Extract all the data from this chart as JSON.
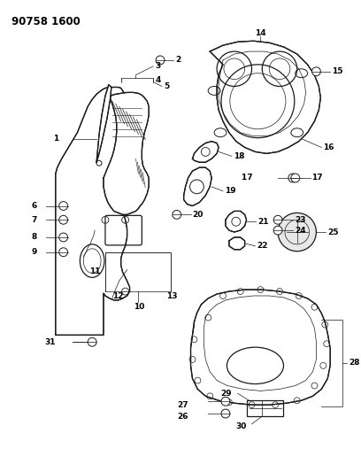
{
  "title": "90758 1600",
  "bg_color": "#ffffff",
  "line_color": "#1a1a1a",
  "title_fontsize": 8.5,
  "label_fontsize": 6.5,
  "figsize": [
    4.08,
    5.33
  ],
  "dpi": 100
}
